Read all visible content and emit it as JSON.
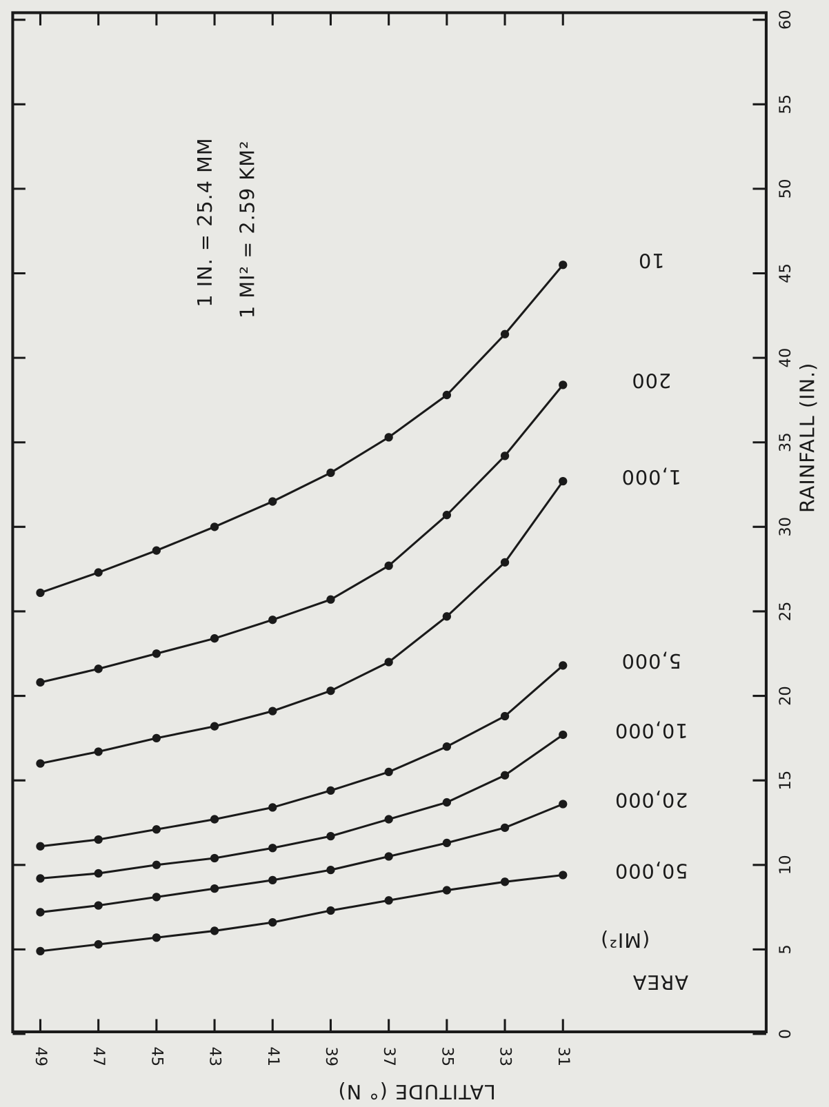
{
  "chart_data": {
    "type": "line",
    "x_label": "LATITUDE (° N)",
    "y_label": "RAINFALL (IN.)",
    "legend_title": "AREA",
    "legend_unit": "(MI²)",
    "annotations": [
      "1 IN. = 25.4 MM",
      "1 MI² = 2.59 KM²"
    ],
    "x": [
      49,
      47,
      45,
      43,
      41,
      39,
      37,
      35,
      33,
      31
    ],
    "xlim": [
      50,
      24
    ],
    "xticks": [
      49,
      47,
      45,
      43,
      41,
      39,
      37,
      35,
      33,
      31
    ],
    "ylim": [
      0,
      60
    ],
    "yticks": [
      0,
      5,
      10,
      15,
      20,
      25,
      30,
      35,
      40,
      45,
      50,
      55,
      60
    ],
    "color": "#1a1a1a",
    "series": [
      {
        "name": "10",
        "values": [
          26.1,
          27.3,
          28.6,
          30.0,
          31.5,
          33.2,
          35.3,
          37.8,
          41.4,
          45.5
        ]
      },
      {
        "name": "200",
        "values": [
          20.8,
          21.6,
          22.5,
          23.4,
          24.5,
          25.7,
          27.7,
          30.7,
          34.2,
          38.4
        ]
      },
      {
        "name": "1,000",
        "values": [
          16.0,
          16.7,
          17.5,
          18.2,
          19.1,
          20.3,
          22.0,
          24.7,
          27.9,
          32.7
        ]
      },
      {
        "name": "5,000",
        "values": [
          11.1,
          11.5,
          12.1,
          12.7,
          13.4,
          14.4,
          15.5,
          17.0,
          18.8,
          21.8
        ]
      },
      {
        "name": "10,000",
        "values": [
          9.2,
          9.5,
          10.0,
          10.4,
          11.0,
          11.7,
          12.7,
          13.7,
          15.3,
          17.7
        ]
      },
      {
        "name": "20,000",
        "values": [
          7.2,
          7.6,
          8.1,
          8.6,
          9.1,
          9.7,
          10.5,
          11.3,
          12.2,
          13.6
        ]
      },
      {
        "name": "50,000",
        "values": [
          4.9,
          5.3,
          5.7,
          6.1,
          6.6,
          7.3,
          7.9,
          8.5,
          9.0,
          9.4
        ]
      }
    ]
  }
}
